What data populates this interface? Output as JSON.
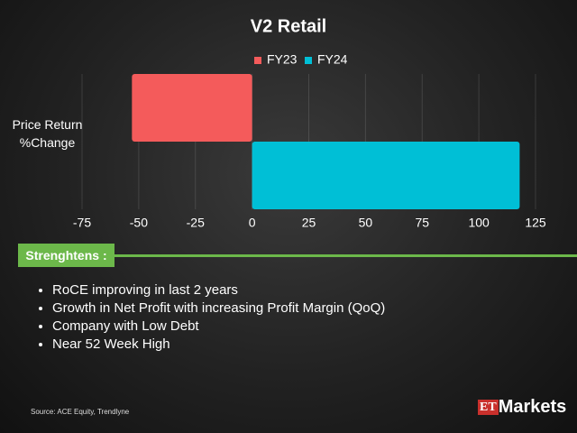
{
  "chart_data": {
    "type": "hbar",
    "title": "V2 Retail",
    "categories": [
      "Price Return %Change"
    ],
    "series": [
      {
        "name": "FY23",
        "color": "#f45b5b",
        "values": [
          -53
        ]
      },
      {
        "name": "FY24",
        "color": "#00bfd6",
        "values": [
          118
        ]
      }
    ],
    "xlim": [
      -75,
      125
    ],
    "xticks": [
      -75,
      -50,
      -25,
      0,
      25,
      50,
      75,
      100,
      125
    ],
    "grid": true,
    "legend": "top"
  },
  "strengths": {
    "heading": "Strenghtens :",
    "items": [
      "RoCE improving in last 2 years",
      "Growth in Net Profit with increasing Profit Margin (QoQ)",
      "Company with Low Debt",
      "Near 52 Week High"
    ]
  },
  "source": "Source:  ACE Equity, Trendlyne",
  "logo": {
    "prefix": "ET",
    "name": "Markets"
  }
}
